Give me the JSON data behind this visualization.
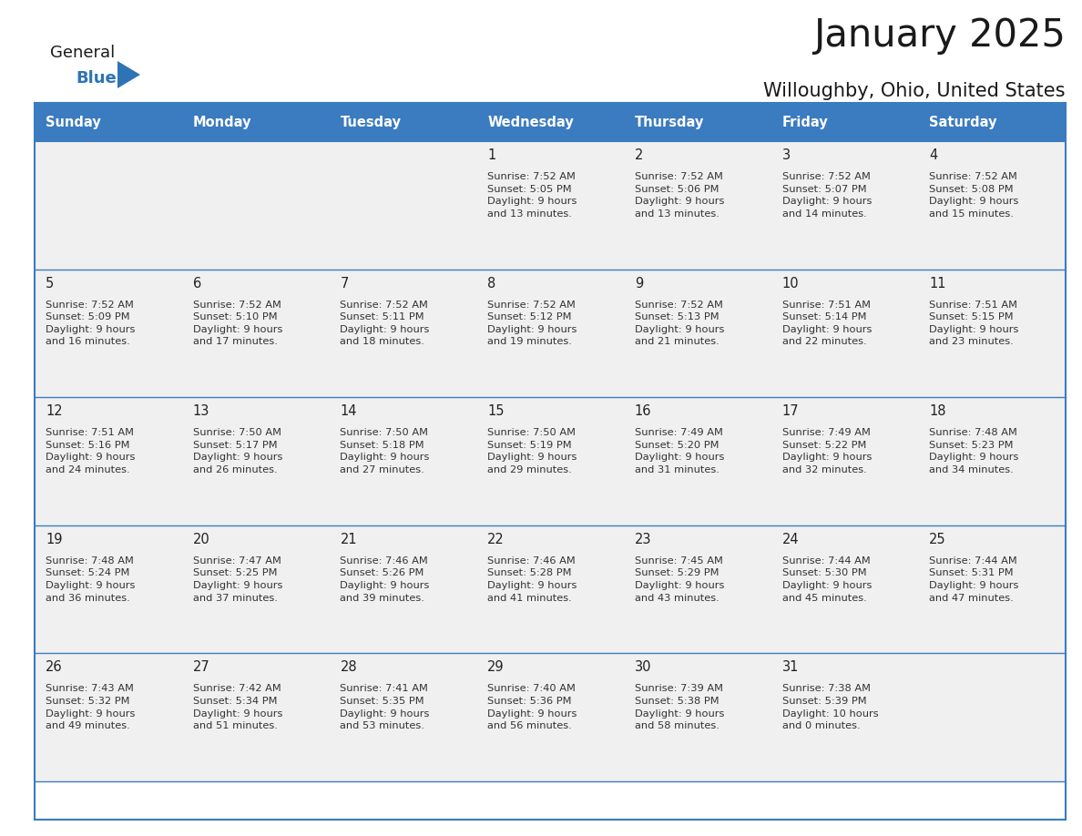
{
  "title": "January 2025",
  "subtitle": "Willoughby, Ohio, United States",
  "header_color": "#3B7BBF",
  "header_text_color": "#FFFFFF",
  "cell_bg_color": "#F0F0F0",
  "border_color": "#3B7BBF",
  "row_divider_color": "#3B7BBF",
  "text_color": "#222222",
  "info_text_color": "#333333",
  "days_of_week": [
    "Sunday",
    "Monday",
    "Tuesday",
    "Wednesday",
    "Thursday",
    "Friday",
    "Saturday"
  ],
  "weeks": [
    [
      {
        "day": "",
        "info": ""
      },
      {
        "day": "",
        "info": ""
      },
      {
        "day": "",
        "info": ""
      },
      {
        "day": "1",
        "info": "Sunrise: 7:52 AM\nSunset: 5:05 PM\nDaylight: 9 hours\nand 13 minutes."
      },
      {
        "day": "2",
        "info": "Sunrise: 7:52 AM\nSunset: 5:06 PM\nDaylight: 9 hours\nand 13 minutes."
      },
      {
        "day": "3",
        "info": "Sunrise: 7:52 AM\nSunset: 5:07 PM\nDaylight: 9 hours\nand 14 minutes."
      },
      {
        "day": "4",
        "info": "Sunrise: 7:52 AM\nSunset: 5:08 PM\nDaylight: 9 hours\nand 15 minutes."
      }
    ],
    [
      {
        "day": "5",
        "info": "Sunrise: 7:52 AM\nSunset: 5:09 PM\nDaylight: 9 hours\nand 16 minutes."
      },
      {
        "day": "6",
        "info": "Sunrise: 7:52 AM\nSunset: 5:10 PM\nDaylight: 9 hours\nand 17 minutes."
      },
      {
        "day": "7",
        "info": "Sunrise: 7:52 AM\nSunset: 5:11 PM\nDaylight: 9 hours\nand 18 minutes."
      },
      {
        "day": "8",
        "info": "Sunrise: 7:52 AM\nSunset: 5:12 PM\nDaylight: 9 hours\nand 19 minutes."
      },
      {
        "day": "9",
        "info": "Sunrise: 7:52 AM\nSunset: 5:13 PM\nDaylight: 9 hours\nand 21 minutes."
      },
      {
        "day": "10",
        "info": "Sunrise: 7:51 AM\nSunset: 5:14 PM\nDaylight: 9 hours\nand 22 minutes."
      },
      {
        "day": "11",
        "info": "Sunrise: 7:51 AM\nSunset: 5:15 PM\nDaylight: 9 hours\nand 23 minutes."
      }
    ],
    [
      {
        "day": "12",
        "info": "Sunrise: 7:51 AM\nSunset: 5:16 PM\nDaylight: 9 hours\nand 24 minutes."
      },
      {
        "day": "13",
        "info": "Sunrise: 7:50 AM\nSunset: 5:17 PM\nDaylight: 9 hours\nand 26 minutes."
      },
      {
        "day": "14",
        "info": "Sunrise: 7:50 AM\nSunset: 5:18 PM\nDaylight: 9 hours\nand 27 minutes."
      },
      {
        "day": "15",
        "info": "Sunrise: 7:50 AM\nSunset: 5:19 PM\nDaylight: 9 hours\nand 29 minutes."
      },
      {
        "day": "16",
        "info": "Sunrise: 7:49 AM\nSunset: 5:20 PM\nDaylight: 9 hours\nand 31 minutes."
      },
      {
        "day": "17",
        "info": "Sunrise: 7:49 AM\nSunset: 5:22 PM\nDaylight: 9 hours\nand 32 minutes."
      },
      {
        "day": "18",
        "info": "Sunrise: 7:48 AM\nSunset: 5:23 PM\nDaylight: 9 hours\nand 34 minutes."
      }
    ],
    [
      {
        "day": "19",
        "info": "Sunrise: 7:48 AM\nSunset: 5:24 PM\nDaylight: 9 hours\nand 36 minutes."
      },
      {
        "day": "20",
        "info": "Sunrise: 7:47 AM\nSunset: 5:25 PM\nDaylight: 9 hours\nand 37 minutes."
      },
      {
        "day": "21",
        "info": "Sunrise: 7:46 AM\nSunset: 5:26 PM\nDaylight: 9 hours\nand 39 minutes."
      },
      {
        "day": "22",
        "info": "Sunrise: 7:46 AM\nSunset: 5:28 PM\nDaylight: 9 hours\nand 41 minutes."
      },
      {
        "day": "23",
        "info": "Sunrise: 7:45 AM\nSunset: 5:29 PM\nDaylight: 9 hours\nand 43 minutes."
      },
      {
        "day": "24",
        "info": "Sunrise: 7:44 AM\nSunset: 5:30 PM\nDaylight: 9 hours\nand 45 minutes."
      },
      {
        "day": "25",
        "info": "Sunrise: 7:44 AM\nSunset: 5:31 PM\nDaylight: 9 hours\nand 47 minutes."
      }
    ],
    [
      {
        "day": "26",
        "info": "Sunrise: 7:43 AM\nSunset: 5:32 PM\nDaylight: 9 hours\nand 49 minutes."
      },
      {
        "day": "27",
        "info": "Sunrise: 7:42 AM\nSunset: 5:34 PM\nDaylight: 9 hours\nand 51 minutes."
      },
      {
        "day": "28",
        "info": "Sunrise: 7:41 AM\nSunset: 5:35 PM\nDaylight: 9 hours\nand 53 minutes."
      },
      {
        "day": "29",
        "info": "Sunrise: 7:40 AM\nSunset: 5:36 PM\nDaylight: 9 hours\nand 56 minutes."
      },
      {
        "day": "30",
        "info": "Sunrise: 7:39 AM\nSunset: 5:38 PM\nDaylight: 9 hours\nand 58 minutes."
      },
      {
        "day": "31",
        "info": "Sunrise: 7:38 AM\nSunset: 5:39 PM\nDaylight: 10 hours\nand 0 minutes."
      },
      {
        "day": "",
        "info": ""
      }
    ]
  ],
  "logo_general_color": "#1a1a1a",
  "logo_blue_color": "#2E74B5",
  "logo_triangle_color": "#2E74B5",
  "figwidth": 11.88,
  "figheight": 9.18,
  "dpi": 100
}
